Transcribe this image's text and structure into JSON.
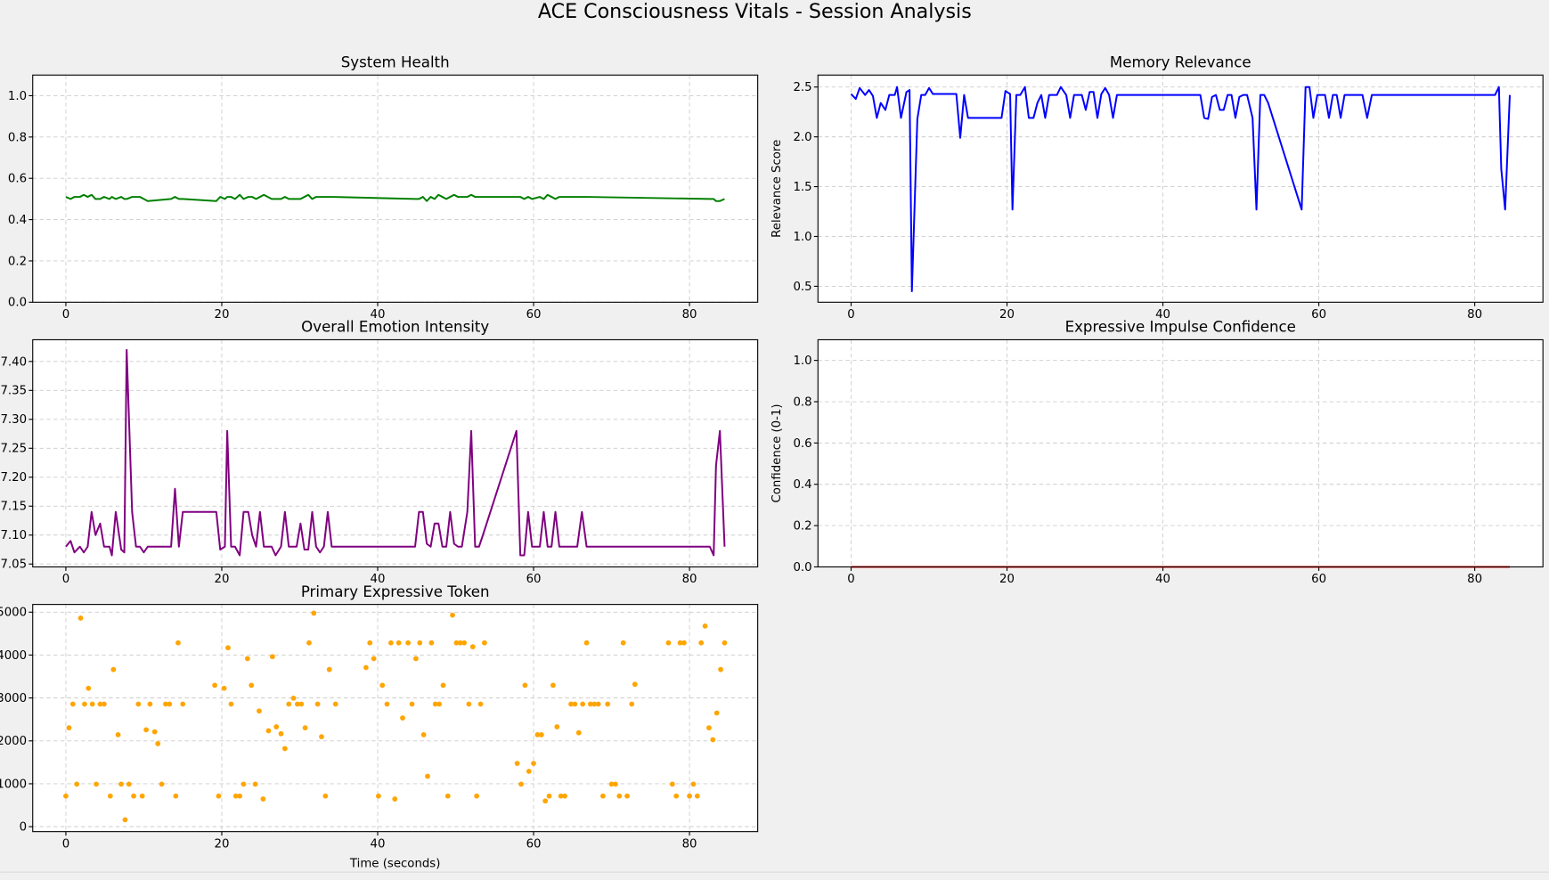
{
  "title": "ACE Consciousness Vitals - Session Analysis",
  "chart_data": [
    {
      "type": "line",
      "title": "System Health",
      "color": "green",
      "grid": true,
      "xlim": [
        -4.25,
        88.75
      ],
      "xticks": [
        0,
        20,
        40,
        60,
        80
      ],
      "ylim": [
        0,
        1.1
      ],
      "yticks": [
        {
          "value": 0,
          "label": "0.0"
        },
        0.2,
        0.4,
        0.6,
        0.8,
        {
          "value": 1,
          "label": "1.0"
        }
      ],
      "x": [
        0,
        0.6,
        1.1,
        1.8,
        2.3,
        2.8,
        3.3,
        3.8,
        4.4,
        4.9,
        5.6,
        5.9,
        6.4,
        7.1,
        7.5,
        7.8,
        8.5,
        9.0,
        9.5,
        10.0,
        10.5,
        13.5,
        14.0,
        14.5,
        15.0,
        19.3,
        19.8,
        20.4,
        20.7,
        21.2,
        21.7,
        22.3,
        22.8,
        23.4,
        23.9,
        24.4,
        24.9,
        25.4,
        26.4,
        26.9,
        27.6,
        28.1,
        28.6,
        29.6,
        30.1,
        30.6,
        31.1,
        31.6,
        32.1,
        32.6,
        33.1,
        33.6,
        34.1,
        44.8,
        45.3,
        45.8,
        46.3,
        46.8,
        47.3,
        47.8,
        48.3,
        48.8,
        49.3,
        49.8,
        50.3,
        50.8,
        51.5,
        52.0,
        52.5,
        53.0,
        53.5,
        57.8,
        58.3,
        58.8,
        59.3,
        59.8,
        60.8,
        61.3,
        61.8,
        62.3,
        62.8,
        63.3,
        65.6,
        66.2,
        66.8,
        82.6,
        83.1,
        83.4,
        83.9,
        84.5
      ],
      "values": [
        0.51,
        0.5,
        0.51,
        0.51,
        0.52,
        0.51,
        0.52,
        0.5,
        0.5,
        0.51,
        0.5,
        0.51,
        0.5,
        0.51,
        0.5,
        0.5,
        0.51,
        0.51,
        0.51,
        0.5,
        0.49,
        0.5,
        0.51,
        0.5,
        0.5,
        0.49,
        0.51,
        0.5,
        0.51,
        0.51,
        0.5,
        0.52,
        0.5,
        0.51,
        0.51,
        0.5,
        0.51,
        0.52,
        0.5,
        0.5,
        0.5,
        0.51,
        0.5,
        0.5,
        0.5,
        0.51,
        0.52,
        0.5,
        0.51,
        0.51,
        0.51,
        0.51,
        0.51,
        0.5,
        0.5,
        0.51,
        0.49,
        0.51,
        0.5,
        0.52,
        0.51,
        0.5,
        0.51,
        0.52,
        0.51,
        0.51,
        0.51,
        0.52,
        0.51,
        0.51,
        0.51,
        0.51,
        0.51,
        0.5,
        0.51,
        0.5,
        0.51,
        0.5,
        0.52,
        0.51,
        0.5,
        0.51,
        0.51,
        0.51,
        0.51,
        0.5,
        0.5,
        0.49,
        0.49,
        0.5
      ]
    },
    {
      "type": "line",
      "title": "Memory Relevance",
      "ylabel": "Relevance Score",
      "color": "blue",
      "grid": true,
      "xlim": [
        -4.25,
        88.75
      ],
      "xticks": [
        0,
        20,
        40,
        60,
        80
      ],
      "ylim": [
        0.34,
        2.62
      ],
      "yticks": [
        0.5,
        {
          "value": 1,
          "label": "1.0"
        },
        1.5,
        {
          "value": 2,
          "label": "2.0"
        },
        2.5
      ],
      "x": [
        0,
        0.6,
        1.1,
        1.8,
        2.3,
        2.8,
        3.3,
        3.8,
        4.4,
        4.9,
        5.6,
        5.9,
        6.4,
        7.1,
        7.5,
        7.8,
        8.5,
        9.0,
        9.5,
        10.0,
        10.5,
        13.5,
        14.0,
        14.5,
        15.0,
        19.3,
        19.8,
        20.4,
        20.7,
        21.2,
        21.7,
        22.3,
        22.8,
        23.4,
        23.9,
        24.4,
        24.9,
        25.4,
        26.4,
        26.9,
        27.6,
        28.1,
        28.6,
        29.6,
        30.1,
        30.6,
        31.1,
        31.6,
        32.1,
        32.6,
        33.1,
        33.6,
        34.1,
        44.8,
        45.3,
        45.8,
        46.3,
        46.8,
        47.3,
        47.8,
        48.3,
        48.8,
        49.3,
        49.8,
        50.3,
        50.8,
        51.5,
        52.0,
        52.5,
        53.0,
        53.5,
        57.8,
        58.3,
        58.8,
        59.3,
        59.8,
        60.8,
        61.3,
        61.8,
        62.3,
        62.8,
        63.3,
        65.6,
        66.2,
        66.8,
        82.6,
        83.1,
        83.4,
        83.9,
        84.5
      ],
      "values": [
        2.43,
        2.38,
        2.49,
        2.42,
        2.47,
        2.41,
        2.19,
        2.34,
        2.27,
        2.42,
        2.42,
        2.5,
        2.19,
        2.45,
        2.47,
        0.45,
        2.18,
        2.42,
        2.42,
        2.49,
        2.43,
        2.43,
        1.99,
        2.42,
        2.19,
        2.19,
        2.46,
        2.43,
        1.27,
        2.42,
        2.42,
        2.5,
        2.19,
        2.19,
        2.34,
        2.42,
        2.19,
        2.42,
        2.42,
        2.5,
        2.42,
        2.19,
        2.42,
        2.42,
        2.27,
        2.45,
        2.45,
        2.19,
        2.43,
        2.49,
        2.42,
        2.19,
        2.42,
        2.42,
        2.19,
        2.18,
        2.4,
        2.42,
        2.27,
        2.27,
        2.42,
        2.42,
        2.19,
        2.4,
        2.42,
        2.42,
        2.19,
        1.27,
        2.42,
        2.42,
        2.34,
        1.27,
        2.5,
        2.5,
        2.19,
        2.42,
        2.42,
        2.19,
        2.42,
        2.42,
        2.19,
        2.42,
        2.42,
        2.19,
        2.42,
        2.42,
        2.5,
        1.68,
        1.27,
        2.42
      ]
    },
    {
      "type": "line",
      "title": "Overall Emotion Intensity",
      "color": "purple",
      "grid": true,
      "xlim": [
        -4.25,
        88.75
      ],
      "xticks": [
        0,
        20,
        40,
        60,
        80
      ],
      "ylim": [
        7.045,
        7.4375
      ],
      "yticks": [
        7.05,
        {
          "value": 7.1,
          "label": "7.10"
        },
        7.15,
        {
          "value": 7.2,
          "label": "7.20"
        },
        7.25,
        {
          "value": 7.3,
          "label": "7.30"
        },
        7.35,
        {
          "value": 7.4,
          "label": "7.40"
        }
      ],
      "x": [
        0,
        0.6,
        1.1,
        1.8,
        2.3,
        2.8,
        3.3,
        3.8,
        4.4,
        4.9,
        5.6,
        5.9,
        6.4,
        7.1,
        7.5,
        7.8,
        8.5,
        9.0,
        9.5,
        10.0,
        10.5,
        13.5,
        14.0,
        14.5,
        15.0,
        19.3,
        19.8,
        20.4,
        20.7,
        21.2,
        21.7,
        22.3,
        22.8,
        23.4,
        23.9,
        24.4,
        24.9,
        25.4,
        26.4,
        26.9,
        27.6,
        28.1,
        28.6,
        29.6,
        30.1,
        30.6,
        31.1,
        31.6,
        32.1,
        32.6,
        33.1,
        33.6,
        34.1,
        44.8,
        45.3,
        45.8,
        46.3,
        46.8,
        47.3,
        47.8,
        48.3,
        48.8,
        49.3,
        49.8,
        50.3,
        50.8,
        51.5,
        52.0,
        52.5,
        53.0,
        53.5,
        57.8,
        58.3,
        58.8,
        59.3,
        59.8,
        60.8,
        61.3,
        61.8,
        62.3,
        62.8,
        63.3,
        65.6,
        66.2,
        66.8,
        82.6,
        83.1,
        83.4,
        83.9,
        84.5
      ],
      "values": [
        7.08,
        7.09,
        7.07,
        7.08,
        7.07,
        7.08,
        7.14,
        7.1,
        7.12,
        7.08,
        7.08,
        7.065,
        7.14,
        7.075,
        7.07,
        7.42,
        7.14,
        7.08,
        7.08,
        7.07,
        7.08,
        7.08,
        7.18,
        7.08,
        7.14,
        7.14,
        7.075,
        7.08,
        7.28,
        7.08,
        7.08,
        7.065,
        7.14,
        7.14,
        7.1,
        7.08,
        7.14,
        7.08,
        7.08,
        7.065,
        7.08,
        7.14,
        7.08,
        7.08,
        7.12,
        7.075,
        7.075,
        7.14,
        7.08,
        7.07,
        7.08,
        7.14,
        7.08,
        7.08,
        7.14,
        7.14,
        7.085,
        7.08,
        7.12,
        7.12,
        7.08,
        7.08,
        7.14,
        7.085,
        7.08,
        7.08,
        7.14,
        7.28,
        7.08,
        7.08,
        7.1,
        7.28,
        7.065,
        7.065,
        7.14,
        7.08,
        7.08,
        7.14,
        7.08,
        7.08,
        7.14,
        7.08,
        7.08,
        7.14,
        7.08,
        7.08,
        7.065,
        7.22,
        7.28,
        7.08
      ]
    },
    {
      "type": "line",
      "title": "Expressive Impulse Confidence",
      "ylabel": "Confidence (0-1)",
      "color": "red",
      "grid": true,
      "xlim": [
        -4.25,
        88.75
      ],
      "xticks": [
        0,
        20,
        40,
        60,
        80
      ],
      "ylim": [
        0,
        1.1
      ],
      "yticks": [
        {
          "value": 0,
          "label": "0.0"
        },
        0.2,
        0.4,
        0.6,
        0.8,
        {
          "value": 1,
          "label": "1.0"
        }
      ],
      "x": [
        0,
        84.5
      ],
      "values": [
        0,
        0
      ]
    },
    {
      "type": "scatter",
      "title": "Primary Expressive Token",
      "xlabel": "Time (seconds)",
      "color": "orange",
      "grid": true,
      "xlim": [
        -4.25,
        88.75
      ],
      "xticks": [
        0,
        20,
        40,
        60,
        80
      ],
      "ylim": [
        -115,
        5180
      ],
      "yticks": [
        0,
        1000,
        2000,
        3000,
        4000,
        5000
      ],
      "x": [
        0.0,
        0.4,
        0.9,
        1.4,
        1.9,
        2.4,
        2.9,
        3.4,
        3.9,
        4.4,
        4.9,
        5.7,
        6.1,
        6.7,
        7.1,
        7.6,
        8.1,
        8.7,
        9.3,
        9.8,
        10.3,
        10.8,
        11.4,
        11.8,
        12.3,
        12.8,
        13.3,
        14.1,
        14.4,
        15.0,
        19.1,
        19.6,
        20.3,
        20.8,
        21.2,
        21.8,
        22.3,
        22.8,
        23.3,
        23.8,
        24.3,
        24.8,
        25.3,
        26.0,
        26.5,
        27.0,
        27.6,
        28.1,
        28.6,
        29.2,
        29.7,
        30.2,
        30.7,
        31.2,
        31.8,
        32.3,
        32.8,
        33.3,
        33.8,
        34.6,
        38.5,
        39.0,
        39.5,
        40.1,
        40.6,
        41.2,
        41.7,
        42.2,
        42.7,
        43.2,
        43.9,
        44.4,
        44.9,
        45.4,
        45.9,
        46.4,
        46.9,
        47.4,
        47.9,
        48.4,
        49.0,
        49.6,
        50.1,
        50.6,
        51.1,
        51.7,
        52.2,
        52.7,
        53.2,
        53.7,
        57.9,
        58.4,
        58.9,
        59.4,
        60.0,
        60.5,
        61.0,
        61.5,
        62.0,
        62.5,
        63.0,
        63.5,
        64.0,
        64.8,
        65.3,
        65.8,
        66.3,
        66.8,
        67.3,
        67.8,
        68.3,
        68.9,
        69.5,
        70.0,
        70.5,
        71.0,
        71.5,
        72.0,
        72.6,
        73.0,
        77.3,
        77.8,
        78.3,
        78.8,
        79.3,
        80.0,
        80.5,
        81.0,
        81.5,
        82.0,
        82.5,
        83.0,
        83.5,
        84.0,
        84.5
      ],
      "values": [
        714,
        2304,
        2857,
        991,
        4862,
        2857,
        3226,
        2857,
        991,
        2857,
        2857,
        714,
        3663,
        2143,
        991,
        161,
        991,
        714,
        2857,
        714,
        2258,
        2857,
        2212,
        1935,
        991,
        2857,
        2857,
        714,
        4285,
        2857,
        3295,
        714,
        3226,
        4170,
        2857,
        714,
        714,
        991,
        3917,
        3295,
        991,
        2696,
        645,
        2235,
        3963,
        2327,
        2166,
        1820,
        2857,
        2995,
        2857,
        2857,
        2304,
        4285,
        4977,
        2857,
        2097,
        714,
        3663,
        2857,
        3709,
        4285,
        3917,
        714,
        3295,
        2857,
        4285,
        645,
        4285,
        2534,
        4285,
        2857,
        3917,
        4285,
        2143,
        1175,
        4285,
        2857,
        2857,
        3295,
        714,
        4931,
        4285,
        4285,
        4285,
        2857,
        4193,
        714,
        2857,
        4285,
        1475,
        991,
        3295,
        1290,
        1475,
        2143,
        2143,
        599,
        714,
        3295,
        2327,
        714,
        714,
        2857,
        2857,
        2189,
        2857,
        4285,
        2857,
        2857,
        2857,
        714,
        2857,
        991,
        991,
        714,
        4285,
        714,
        2857,
        3318,
        4285,
        991,
        714,
        4285,
        4285,
        714,
        991,
        714,
        4285,
        4677,
        2304,
        2028,
        2650,
        3663,
        4285
      ]
    }
  ]
}
